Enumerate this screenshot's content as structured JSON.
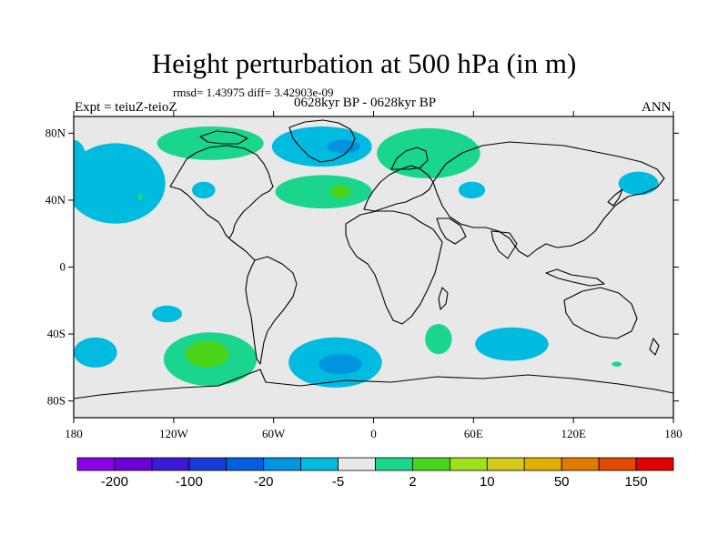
{
  "title": "Height perturbation at 500 hPa (in m)",
  "stats": "rmsd= 1.43975 diff= 3.42903e-09",
  "experiment": "Expt = teiuZ-teioZ",
  "period": "0628kyr BP - 0628kyr BP",
  "season": "ANN",
  "map": {
    "background_color": "#e8e8e8",
    "lat_range": [
      -90,
      90
    ],
    "lon_range": [
      -180,
      180
    ],
    "lat_ticks": [
      {
        "value": 80,
        "label": "80N"
      },
      {
        "value": 40,
        "label": "40N"
      },
      {
        "value": 0,
        "label": "0"
      },
      {
        "value": -40,
        "label": "40S"
      },
      {
        "value": -80,
        "label": "80S"
      }
    ],
    "lon_ticks": [
      {
        "value": -180,
        "label": "180"
      },
      {
        "value": -120,
        "label": "120W"
      },
      {
        "value": -60,
        "label": "60W"
      },
      {
        "value": 0,
        "label": "0"
      },
      {
        "value": 60,
        "label": "60E"
      },
      {
        "value": 120,
        "label": "120E"
      },
      {
        "value": 180,
        "label": "180"
      }
    ],
    "anomalies": [
      {
        "lon": -155,
        "lat": 50,
        "rlon": 30,
        "rlat": 24,
        "color": "#00bbe0",
        "shade": "light-blue"
      },
      {
        "lon": -180,
        "lat": 62,
        "rlon": 8,
        "rlat": 14,
        "color": "#00bbe0",
        "shade": "light-blue"
      },
      {
        "lon": -98,
        "lat": 74,
        "rlon": 32,
        "rlat": 10,
        "color": "#19d68c",
        "shade": "light-green"
      },
      {
        "lon": -180,
        "lat": 48,
        "rlon": 14,
        "rlat": 11,
        "color": "#00bbe0",
        "shade": "light-blue"
      },
      {
        "lon": -140,
        "lat": 42,
        "rlon": 1.5,
        "rlat": 2,
        "color": "#19d68c",
        "shade": "light-green"
      },
      {
        "lon": -31,
        "lat": 72,
        "rlon": 30,
        "rlat": 12,
        "color": "#00bbe0",
        "shade": "light-blue"
      },
      {
        "lon": -18,
        "lat": 72,
        "rlon": 10,
        "rlat": 4,
        "color": "#0093df",
        "shade": "mid-blue"
      },
      {
        "lon": -30,
        "lat": 45,
        "rlon": 29,
        "rlat": 10,
        "color": "#19d68c",
        "shade": "light-green"
      },
      {
        "lon": -20,
        "lat": 45,
        "rlon": 6,
        "rlat": 4,
        "color": "#4bd51a",
        "shade": "mid-green"
      },
      {
        "lon": 33,
        "lat": 68,
        "rlon": 31,
        "rlat": 15,
        "color": "#19d68c",
        "shade": "light-green"
      },
      {
        "lon": 59,
        "lat": 46,
        "rlon": 8,
        "rlat": 5,
        "color": "#00bbe0",
        "shade": "light-blue"
      },
      {
        "lon": -102,
        "lat": 46,
        "rlon": 7,
        "rlat": 5,
        "color": "#00bbe0",
        "shade": "light-blue"
      },
      {
        "lon": 159,
        "lat": 50,
        "rlon": 12,
        "rlat": 7,
        "color": "#00bbe0",
        "shade": "light-blue"
      },
      {
        "lon": -124,
        "lat": -28,
        "rlon": 9,
        "rlat": 5,
        "color": "#00bbe0",
        "shade": "light-blue"
      },
      {
        "lon": -167,
        "lat": -51,
        "rlon": 13,
        "rlat": 9,
        "color": "#00bbe0",
        "shade": "light-blue"
      },
      {
        "lon": -98,
        "lat": -55,
        "rlon": 28,
        "rlat": 16,
        "color": "#19d68c",
        "shade": "light-green"
      },
      {
        "lon": -100,
        "lat": -52,
        "rlon": 13,
        "rlat": 8,
        "color": "#4bd51a",
        "shade": "mid-green"
      },
      {
        "lon": -23,
        "lat": -57,
        "rlon": 28,
        "rlat": 15,
        "color": "#00bbe0",
        "shade": "light-blue"
      },
      {
        "lon": -20,
        "lat": -58,
        "rlon": 13,
        "rlat": 6,
        "color": "#0093df",
        "shade": "mid-blue"
      },
      {
        "lon": 39,
        "lat": -43,
        "rlon": 8,
        "rlat": 9,
        "color": "#19d68c",
        "shade": "light-green"
      },
      {
        "lon": 83,
        "lat": -46,
        "rlon": 22,
        "rlat": 10,
        "color": "#00bbe0",
        "shade": "light-blue"
      },
      {
        "lon": 146,
        "lat": -58,
        "rlon": 3,
        "rlat": 1.5,
        "color": "#19d68c",
        "shade": "light-green"
      }
    ]
  },
  "colorbar": {
    "colors": [
      "#8a00e6",
      "#6a00d6",
      "#3a1ad6",
      "#1a3ad6",
      "#0060e0",
      "#0093df",
      "#00bbe0",
      "#e8e8e8",
      "#19d68c",
      "#4bd51a",
      "#a0e01a",
      "#d4c81a",
      "#e0b000",
      "#e07a00",
      "#e04a00",
      "#e00000"
    ],
    "labels": [
      {
        "after_box": 1,
        "text": "-200"
      },
      {
        "after_box": 3,
        "text": "-100"
      },
      {
        "after_box": 5,
        "text": "-20"
      },
      {
        "after_box": 7,
        "text": "-5"
      },
      {
        "after_box": 9,
        "text": "2"
      },
      {
        "after_box": 11,
        "text": "10"
      },
      {
        "after_box": 13,
        "text": "50"
      },
      {
        "after_box": 15,
        "text": "150"
      }
    ]
  }
}
